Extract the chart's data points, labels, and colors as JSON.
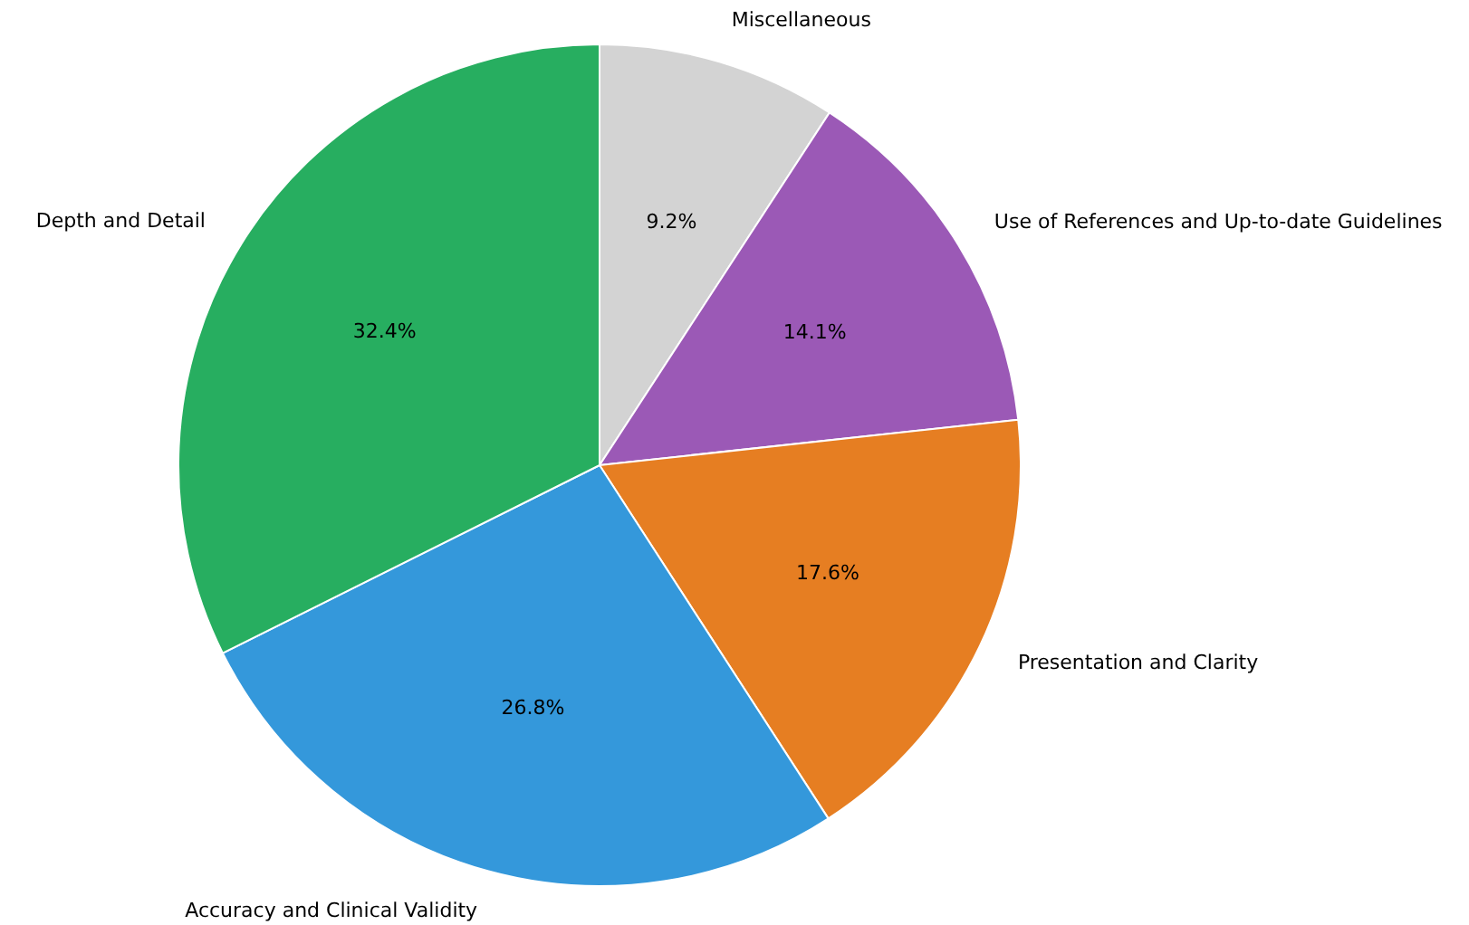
{
  "chart_data": {
    "type": "pie",
    "categories": [
      "Miscellaneous",
      "Use of References and Up-to-date Guidelines",
      "Presentation and Clarity",
      "Accuracy and Clinical Validity",
      "Depth and Detail"
    ],
    "values": [
      9.2,
      14.1,
      17.6,
      26.8,
      32.4
    ],
    "colors": [
      "#d3d3d3",
      "#9b59b6",
      "#e67e22",
      "#3498db",
      "#27ae60"
    ],
    "value_labels": [
      "9.2%",
      "14.1%",
      "17.6%",
      "26.8%",
      "32.4%"
    ],
    "legend": false
  }
}
